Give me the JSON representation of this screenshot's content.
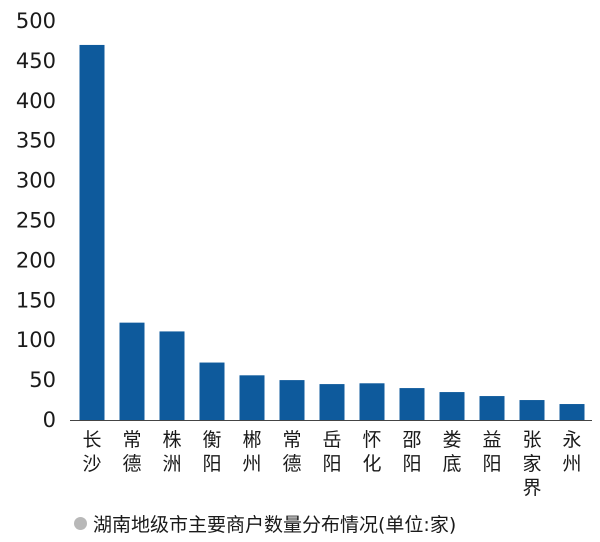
{
  "chart_data": {
    "type": "bar",
    "categories": [
      "长沙",
      "常德",
      "株洲",
      "衡阳",
      "郴州",
      "常德",
      "岳阳",
      "怀化",
      "邵阳",
      "娄底",
      "益阳",
      "张家界",
      "永州"
    ],
    "values": [
      470,
      122,
      111,
      72,
      56,
      50,
      45,
      46,
      40,
      35,
      30,
      25,
      20
    ],
    "title": "",
    "xlabel": "",
    "ylabel": "",
    "ylim": [
      0,
      500
    ],
    "yticks": [
      0,
      50,
      100,
      150,
      200,
      250,
      300,
      350,
      400,
      450,
      500
    ],
    "grid": false,
    "legend": "none",
    "bar_color": "#0e5a9c"
  },
  "caption": {
    "text": "湖南地级市主要商户数量分布情况(单位:家)",
    "marker_color": "#b8b8b8"
  }
}
